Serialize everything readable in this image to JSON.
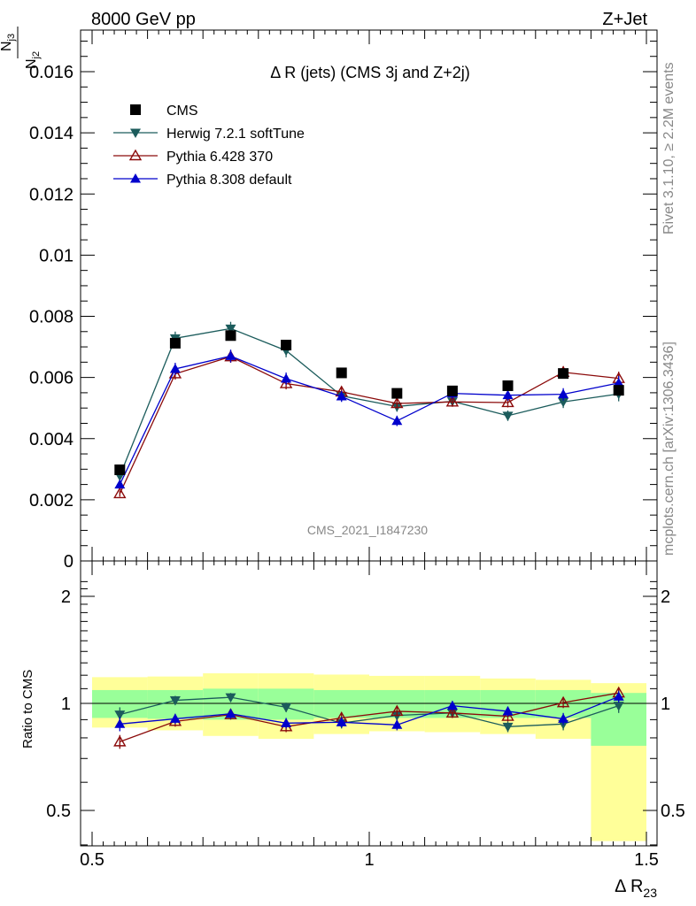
{
  "header": {
    "left": "8000 GeV pp",
    "right": "Z+Jet"
  },
  "side_text": {
    "rivet": "Rivet 3.1.10, ≥ 2.2M events",
    "source": "mcplots.cern.ch [arXiv:1306.3436]"
  },
  "watermark": "CMS_2021_I1847230",
  "chart_data": [
    {
      "type": "scatter",
      "title": "Δ R (jets) (CMS 3j and Z+2j)",
      "ylabel_num": "N",
      "ylabel_num_sub": "j3",
      "ylabel_den": "N",
      "ylabel_den_sub": "j2",
      "xlim": [
        0.5,
        1.5
      ],
      "ylim": [
        0,
        0.0175
      ],
      "ytick_labels": [
        "0",
        "0.002",
        "0.004",
        "0.006",
        "0.008",
        "0.01",
        "0.012",
        "0.014",
        "0.016"
      ],
      "ytick_values": [
        0,
        0.002,
        0.004,
        0.006,
        0.008,
        0.01,
        0.012,
        0.014,
        0.016
      ],
      "legend_position": "top-left",
      "x": [
        0.55,
        0.65,
        0.75,
        0.85,
        0.95,
        1.05,
        1.15,
        1.25,
        1.35,
        1.45
      ],
      "series": [
        {
          "name": "CMS",
          "color": "#000000",
          "marker": "square",
          "values": [
            0.00298,
            0.00712,
            0.00737,
            0.00706,
            0.00615,
            0.00548,
            0.00556,
            0.00573,
            0.00613,
            0.00558
          ]
        },
        {
          "name": "Herwig 7.2.1 softTune",
          "color": "#1c5c5c",
          "marker": "triangle-down",
          "values": [
            0.00278,
            0.00728,
            0.0076,
            0.00688,
            0.0054,
            0.00505,
            0.00522,
            0.00475,
            0.0052,
            0.00546
          ],
          "errors": [
            0.00013,
            0.00022,
            0.00022,
            0.00022,
            0.00017,
            0.00017,
            0.00017,
            0.00017,
            0.0002,
            0.00024
          ]
        },
        {
          "name": "Pythia 6.428 370",
          "color": "#8b0a0a",
          "marker": "triangle-open",
          "values": [
            0.0022,
            0.00612,
            0.00668,
            0.0058,
            0.00553,
            0.00515,
            0.0052,
            0.00518,
            0.00617,
            0.00597
          ],
          "errors": [
            0.0001,
            0.00019,
            0.0002,
            0.00019,
            0.00017,
            0.00016,
            0.00016,
            0.00016,
            0.0002,
            0.00022
          ]
        },
        {
          "name": "Pythia 8.308 default",
          "color": "#0000cc",
          "marker": "triangle-up",
          "values": [
            0.0025,
            0.00628,
            0.0067,
            0.00596,
            0.00538,
            0.00458,
            0.00548,
            0.00542,
            0.00545,
            0.00582
          ],
          "errors": [
            0.00012,
            0.0002,
            0.00021,
            0.0002,
            0.00018,
            0.00017,
            0.00018,
            0.00018,
            0.0002,
            0.00023
          ]
        }
      ]
    },
    {
      "type": "scatter",
      "ylabel": "Ratio to CMS",
      "xlabel": "Δ R",
      "xlabel_sub": "23",
      "xlim": [
        0.5,
        1.5
      ],
      "ylim": [
        0.35,
        2.3
      ],
      "xtick_labels": [
        "0.5",
        "1",
        "1.5"
      ],
      "xtick_values": [
        0.5,
        1.0,
        1.5
      ],
      "ytick_labels": [
        "0.5",
        "1",
        "2"
      ],
      "ytick_values": [
        0.5,
        1,
        2
      ],
      "bands": {
        "x_edges": [
          0.5,
          0.6,
          0.7,
          0.8,
          0.9,
          1.0,
          1.1,
          1.2,
          1.3,
          1.4,
          1.5
        ],
        "green_color": "#99ff99",
        "yellow_color": "#ffff99",
        "green_lo": [
          0.91,
          0.905,
          0.9,
          0.9,
          0.91,
          0.91,
          0.91,
          0.91,
          0.91,
          0.76
        ],
        "green_hi": [
          1.09,
          1.09,
          1.1,
          1.1,
          1.09,
          1.09,
          1.09,
          1.09,
          1.09,
          1.07
        ],
        "yellow_lo": [
          0.855,
          0.84,
          0.81,
          0.795,
          0.82,
          0.835,
          0.83,
          0.82,
          0.795,
          0.41
        ],
        "yellow_hi": [
          1.185,
          1.19,
          1.215,
          1.215,
          1.205,
          1.195,
          1.195,
          1.175,
          1.165,
          1.14
        ]
      },
      "series": [
        {
          "name": "Herwig 7.2.1 softTune",
          "color": "#1c5c5c",
          "marker": "triangle-down",
          "values": [
            0.93,
            1.02,
            1.04,
            0.975,
            0.88,
            0.925,
            0.94,
            0.86,
            0.875,
            0.985
          ],
          "errors": [
            0.045,
            0.03,
            0.03,
            0.03,
            0.03,
            0.03,
            0.03,
            0.03,
            0.035,
            0.045
          ]
        },
        {
          "name": "Pythia 6.428 370",
          "color": "#8b0a0a",
          "marker": "triangle-open",
          "values": [
            0.78,
            0.89,
            0.93,
            0.86,
            0.91,
            0.95,
            0.94,
            0.92,
            1.005,
            1.07
          ],
          "errors": [
            0.035,
            0.03,
            0.03,
            0.03,
            0.03,
            0.03,
            0.03,
            0.03,
            0.035,
            0.04
          ]
        },
        {
          "name": "Pythia 8.308 default",
          "color": "#0000cc",
          "marker": "triangle-up",
          "values": [
            0.875,
            0.905,
            0.935,
            0.88,
            0.885,
            0.87,
            0.985,
            0.95,
            0.905,
            1.045
          ],
          "errors": [
            0.04,
            0.03,
            0.03,
            0.03,
            0.03,
            0.03,
            0.03,
            0.03,
            0.035,
            0.04
          ]
        }
      ]
    }
  ]
}
